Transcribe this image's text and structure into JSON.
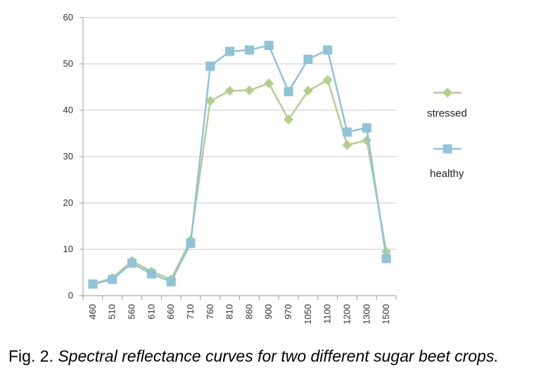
{
  "caption": {
    "prefix": "Fig. 2.",
    "text": "Spectral reflectance curves for two different sugar beet crops."
  },
  "chart_data": {
    "type": "line",
    "title": "",
    "xlabel": "",
    "ylabel": "",
    "categories": [
      "460",
      "510",
      "560",
      "610",
      "660",
      "710",
      "760",
      "810",
      "860",
      "900",
      "970",
      "1050",
      "1100",
      "1200",
      "1300",
      "1500"
    ],
    "ylim": [
      0,
      60
    ],
    "yticks": [
      "0",
      "10",
      "20",
      "30",
      "40",
      "50",
      "60"
    ],
    "grid": "horizontal",
    "legend_position": "right",
    "series": [
      {
        "name": "stressed",
        "marker": "diamond",
        "color": "#b3cf8c",
        "values": [
          2.5,
          3.8,
          7.5,
          5.2,
          3.5,
          12,
          42,
          44.2,
          44.3,
          45.8,
          38,
          44.2,
          46.5,
          32.5,
          33.5,
          9.5
        ]
      },
      {
        "name": "healthy",
        "marker": "square",
        "color": "#8ec3d8",
        "values": [
          2.5,
          3.5,
          7,
          4.7,
          3,
          11.3,
          49.5,
          52.7,
          53,
          54,
          44,
          51,
          53,
          35.3,
          36.2,
          8
        ]
      }
    ]
  }
}
